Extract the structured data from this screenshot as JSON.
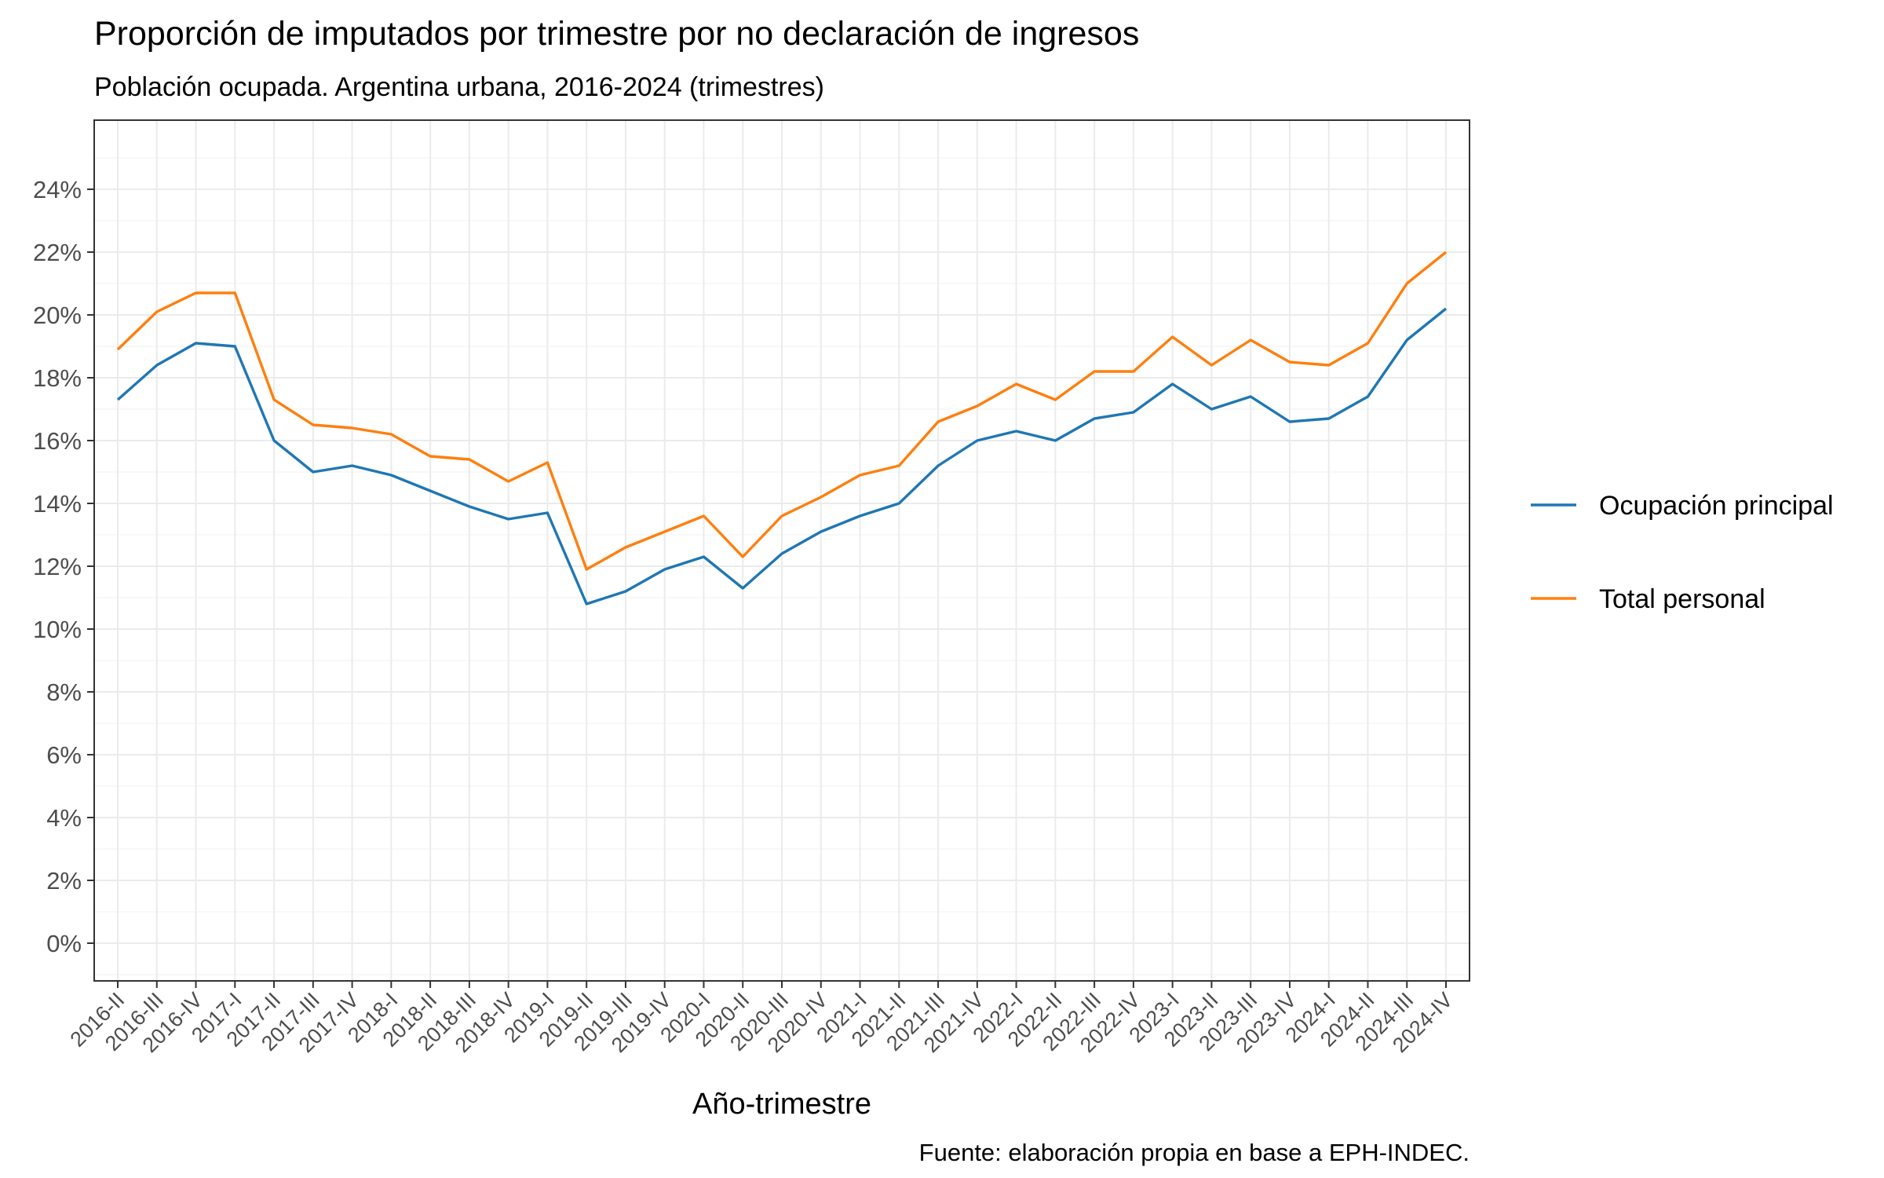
{
  "chart_data": {
    "type": "line",
    "title": "Proporción de imputados por trimestre por no declaración de ingresos",
    "subtitle": "Población ocupada. Argentina urbana, 2016-2024 (trimestres)",
    "xlabel": "Año-trimestre",
    "ylabel": "",
    "caption": "Fuente: elaboración propia en base a EPH-INDEC.",
    "ylim": [
      -0.012,
      0.262
    ],
    "yticks": [
      0,
      0.02,
      0.04,
      0.06,
      0.08,
      0.1,
      0.12,
      0.14,
      0.16,
      0.18,
      0.2,
      0.22,
      0.24
    ],
    "ytick_labels": [
      "0%",
      "2%",
      "4%",
      "6%",
      "8%",
      "10%",
      "12%",
      "14%",
      "16%",
      "18%",
      "20%",
      "22%",
      "24%"
    ],
    "grid": true,
    "legend_position": "right",
    "categories": [
      "2016-II",
      "2016-III",
      "2016-IV",
      "2017-I",
      "2017-II",
      "2017-III",
      "2017-IV",
      "2018-I",
      "2018-II",
      "2018-III",
      "2018-IV",
      "2019-I",
      "2019-II",
      "2019-III",
      "2019-IV",
      "2020-I",
      "2020-II",
      "2020-III",
      "2020-IV",
      "2021-I",
      "2021-II",
      "2021-III",
      "2021-IV",
      "2022-I",
      "2022-II",
      "2022-III",
      "2022-IV",
      "2023-I",
      "2023-II",
      "2023-III",
      "2023-IV",
      "2024-I",
      "2024-II",
      "2024-III",
      "2024-IV"
    ],
    "series": [
      {
        "name": "Ocupación principal",
        "color": "#1f77b4",
        "values": [
          0.173,
          0.184,
          0.191,
          0.19,
          0.16,
          0.15,
          0.152,
          0.149,
          0.144,
          0.139,
          0.135,
          0.137,
          0.108,
          0.112,
          0.119,
          0.123,
          0.113,
          0.124,
          0.131,
          0.136,
          0.14,
          0.152,
          0.16,
          0.163,
          0.16,
          0.167,
          0.169,
          0.178,
          0.17,
          0.174,
          0.166,
          0.167,
          0.174,
          0.192,
          0.202
        ]
      },
      {
        "name": "Total personal",
        "color": "#ff7f0e",
        "values": [
          0.189,
          0.201,
          0.207,
          0.207,
          0.173,
          0.165,
          0.164,
          0.162,
          0.155,
          0.154,
          0.147,
          0.153,
          0.119,
          0.126,
          0.131,
          0.136,
          0.123,
          0.136,
          0.142,
          0.149,
          0.152,
          0.166,
          0.171,
          0.178,
          0.173,
          0.182,
          0.182,
          0.193,
          0.184,
          0.192,
          0.185,
          0.184,
          0.191,
          0.21,
          0.22
        ]
      }
    ]
  }
}
